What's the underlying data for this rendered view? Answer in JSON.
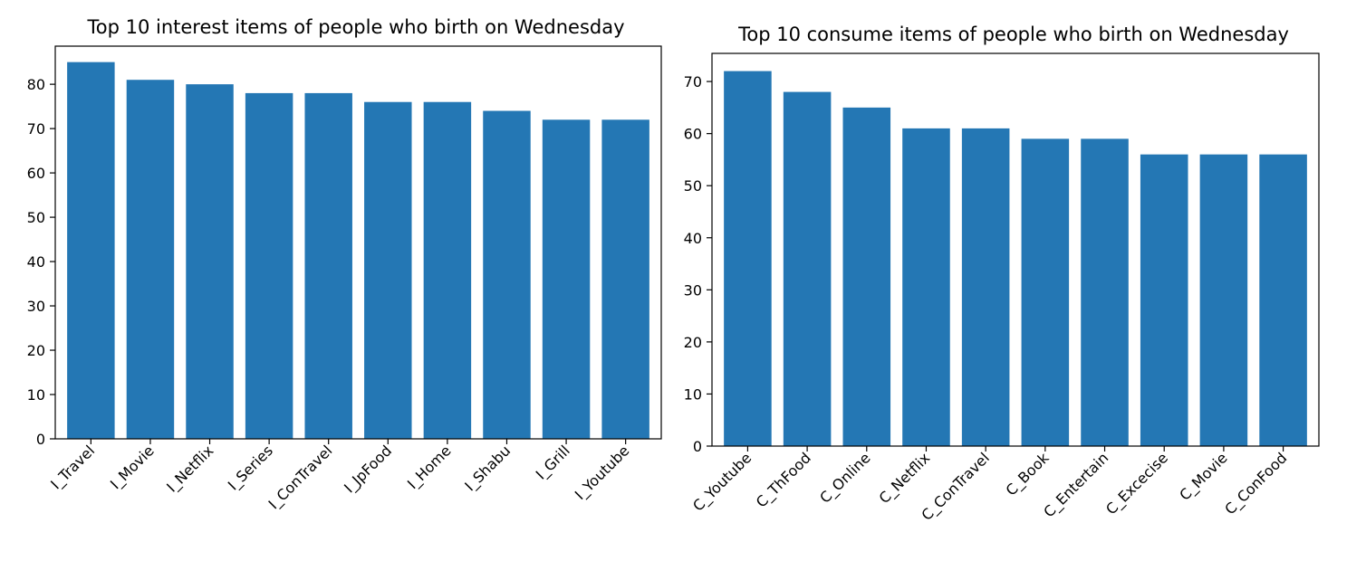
{
  "chart_data": [
    {
      "type": "bar",
      "title": "Top 10 interest items of people who birth on Wednesday",
      "categories": [
        "I_Travel",
        "I_Movie",
        "I_Netflix",
        "I_Series",
        "I_ConTravel",
        "I_JpFood",
        "I_Home",
        "I_Shabu",
        "I_Grill",
        "I_Youtube"
      ],
      "values": [
        85,
        81,
        80,
        78,
        78,
        76,
        76,
        74,
        72,
        72
      ],
      "xlabel": "",
      "ylabel": "",
      "ylim": [
        0,
        88.6
      ],
      "yticks": [
        0,
        10,
        20,
        30,
        40,
        50,
        60,
        70,
        80
      ],
      "grid": false,
      "bar_color": "#2477b4"
    },
    {
      "type": "bar",
      "title": "Top 10 consume items of people who birth on Wednesday",
      "categories": [
        "C_Youtube",
        "C_ThFood",
        "C_Online",
        "C_Netflix",
        "C_ConTravel",
        "C_Book",
        "C_Entertain",
        "C_Excecise",
        "C_Movie",
        "C_ConFood"
      ],
      "values": [
        72,
        68,
        65,
        61,
        61,
        59,
        59,
        56,
        56,
        56
      ],
      "xlabel": "",
      "ylabel": "",
      "ylim": [
        0,
        75.4
      ],
      "yticks": [
        0,
        10,
        20,
        30,
        40,
        50,
        60,
        70
      ],
      "grid": false,
      "bar_color": "#2477b4"
    }
  ]
}
